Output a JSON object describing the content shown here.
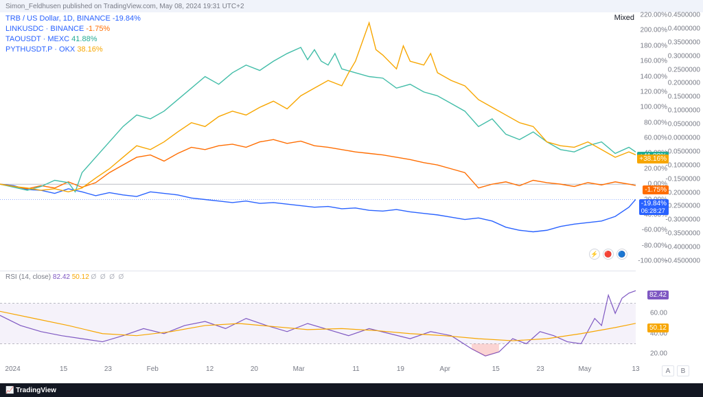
{
  "header": {
    "text": "Simon_Feldhusen published on TradingView.com, May 08, 2024 19:31 UTC+2"
  },
  "legend": {
    "rows": [
      {
        "sym": "TRB / US Dollar, 1D, BINANCE",
        "val": "-19.84%",
        "symColor": "#2962ff",
        "valColor": "#2962ff"
      },
      {
        "sym": "LINKUSDC · BINANCE",
        "val": "-1.75%",
        "symColor": "#2962ff",
        "valColor": "#ff6d00"
      },
      {
        "sym": "TAOUSDT · MEXC",
        "val": "41.88%",
        "symColor": "#2962ff",
        "valColor": "#22ab94"
      },
      {
        "sym": "PYTHUSDT.P · OKX",
        "val": "38.16%",
        "symColor": "#2962ff",
        "valColor": "#f7a600"
      }
    ]
  },
  "mode": "Mixed",
  "chart": {
    "ylim": [
      -100,
      220
    ],
    "y2lim": [
      -0.45,
      0.45
    ],
    "yticks": [
      -100,
      -80,
      -60,
      -40,
      -20,
      0,
      20,
      40,
      60,
      80,
      100,
      120,
      140,
      160,
      180,
      200,
      220
    ],
    "y2ticks": [
      -0.45,
      -0.4,
      -0.35,
      -0.3,
      -0.25,
      -0.2,
      -0.15,
      -0.1,
      -0.05,
      0,
      0.05,
      0.1,
      0.15,
      0.2,
      0.25,
      0.3,
      0.35,
      0.4,
      0.45
    ],
    "xticks": [
      {
        "p": 0.02,
        "l": "2024"
      },
      {
        "p": 0.1,
        "l": "15"
      },
      {
        "p": 0.17,
        "l": "23"
      },
      {
        "p": 0.24,
        "l": "Feb"
      },
      {
        "p": 0.33,
        "l": "12"
      },
      {
        "p": 0.4,
        "l": "20"
      },
      {
        "p": 0.47,
        "l": "Mar"
      },
      {
        "p": 0.56,
        "l": "11"
      },
      {
        "p": 0.63,
        "l": "19"
      },
      {
        "p": 0.7,
        "l": "Apr"
      },
      {
        "p": 0.78,
        "l": "15"
      },
      {
        "p": 0.85,
        "l": "23"
      },
      {
        "p": 0.92,
        "l": "May"
      },
      {
        "p": 1.0,
        "l": "13"
      }
    ],
    "zeroY": 0,
    "series": [
      {
        "name": "TRB",
        "color": "#2962ff",
        "badge": {
          "text": "-19.84%",
          "sub": "06:28:27",
          "bg": "#2962ff",
          "y": -19.84
        },
        "pts": [
          [
            0,
            0
          ],
          [
            2,
            -2
          ],
          [
            4,
            -7
          ],
          [
            6,
            -8
          ],
          [
            8,
            -12
          ],
          [
            10,
            -6
          ],
          [
            12,
            -10
          ],
          [
            14,
            -15
          ],
          [
            16,
            -11
          ],
          [
            18,
            -14
          ],
          [
            20,
            -16
          ],
          [
            22,
            -10
          ],
          [
            24,
            -12
          ],
          [
            26,
            -14
          ],
          [
            28,
            -18
          ],
          [
            30,
            -20
          ],
          [
            32,
            -22
          ],
          [
            34,
            -24
          ],
          [
            36,
            -22
          ],
          [
            38,
            -25
          ],
          [
            40,
            -24
          ],
          [
            42,
            -26
          ],
          [
            44,
            -28
          ],
          [
            46,
            -30
          ],
          [
            48,
            -29
          ],
          [
            50,
            -32
          ],
          [
            52,
            -31
          ],
          [
            54,
            -34
          ],
          [
            56,
            -35
          ],
          [
            58,
            -33
          ],
          [
            60,
            -36
          ],
          [
            62,
            -38
          ],
          [
            64,
            -40
          ],
          [
            66,
            -43
          ],
          [
            68,
            -46
          ],
          [
            70,
            -44
          ],
          [
            72,
            -48
          ],
          [
            74,
            -56
          ],
          [
            76,
            -60
          ],
          [
            78,
            -62
          ],
          [
            80,
            -60
          ],
          [
            82,
            -55
          ],
          [
            84,
            -52
          ],
          [
            86,
            -50
          ],
          [
            88,
            -48
          ],
          [
            90,
            -42
          ],
          [
            92,
            -30
          ],
          [
            93,
            -19.84
          ]
        ]
      },
      {
        "name": "LINK",
        "color": "#ff6d00",
        "badge": {
          "text": "-1.75%",
          "bg": "#ff6d00",
          "y": -1.75
        },
        "pts": [
          [
            0,
            0
          ],
          [
            2,
            -3
          ],
          [
            4,
            -6
          ],
          [
            6,
            -2
          ],
          [
            8,
            -5
          ],
          [
            10,
            3
          ],
          [
            12,
            -4
          ],
          [
            14,
            2
          ],
          [
            16,
            15
          ],
          [
            18,
            25
          ],
          [
            20,
            35
          ],
          [
            22,
            38
          ],
          [
            24,
            30
          ],
          [
            26,
            40
          ],
          [
            28,
            48
          ],
          [
            30,
            45
          ],
          [
            32,
            50
          ],
          [
            34,
            52
          ],
          [
            36,
            48
          ],
          [
            38,
            55
          ],
          [
            40,
            58
          ],
          [
            42,
            53
          ],
          [
            44,
            56
          ],
          [
            46,
            50
          ],
          [
            48,
            48
          ],
          [
            50,
            45
          ],
          [
            52,
            42
          ],
          [
            54,
            40
          ],
          [
            56,
            38
          ],
          [
            58,
            35
          ],
          [
            60,
            32
          ],
          [
            62,
            28
          ],
          [
            64,
            25
          ],
          [
            66,
            20
          ],
          [
            68,
            15
          ],
          [
            70,
            -5
          ],
          [
            72,
            0
          ],
          [
            74,
            3
          ],
          [
            76,
            -2
          ],
          [
            78,
            5
          ],
          [
            80,
            2
          ],
          [
            82,
            0
          ],
          [
            84,
            -3
          ],
          [
            86,
            2
          ],
          [
            88,
            -1
          ],
          [
            90,
            3
          ],
          [
            92,
            0
          ],
          [
            93,
            -1.75
          ]
        ]
      },
      {
        "name": "TAO",
        "color": "#42bda8",
        "badge": {
          "text": "+41.88%",
          "bg": "#22ab94",
          "y": 41.88
        },
        "pts": [
          [
            0,
            0
          ],
          [
            2,
            -4
          ],
          [
            4,
            -8
          ],
          [
            6,
            -3
          ],
          [
            8,
            5
          ],
          [
            10,
            2
          ],
          [
            11,
            -10
          ],
          [
            12,
            15
          ],
          [
            14,
            35
          ],
          [
            16,
            55
          ],
          [
            18,
            75
          ],
          [
            20,
            90
          ],
          [
            22,
            85
          ],
          [
            24,
            95
          ],
          [
            26,
            110
          ],
          [
            28,
            125
          ],
          [
            30,
            140
          ],
          [
            32,
            130
          ],
          [
            34,
            145
          ],
          [
            36,
            155
          ],
          [
            38,
            148
          ],
          [
            40,
            160
          ],
          [
            42,
            170
          ],
          [
            44,
            178
          ],
          [
            45,
            162
          ],
          [
            46,
            175
          ],
          [
            47,
            160
          ],
          [
            48,
            155
          ],
          [
            49,
            170
          ],
          [
            50,
            150
          ],
          [
            52,
            145
          ],
          [
            54,
            140
          ],
          [
            56,
            138
          ],
          [
            58,
            125
          ],
          [
            60,
            130
          ],
          [
            62,
            120
          ],
          [
            64,
            115
          ],
          [
            66,
            105
          ],
          [
            68,
            95
          ],
          [
            70,
            75
          ],
          [
            72,
            85
          ],
          [
            74,
            65
          ],
          [
            76,
            58
          ],
          [
            78,
            68
          ],
          [
            80,
            55
          ],
          [
            82,
            45
          ],
          [
            84,
            42
          ],
          [
            86,
            50
          ],
          [
            88,
            55
          ],
          [
            90,
            40
          ],
          [
            92,
            48
          ],
          [
            93,
            41.88
          ]
        ]
      },
      {
        "name": "PYTH",
        "color": "#f7a600",
        "badge": {
          "text": "+38.16%",
          "bg": "#f7a600",
          "y": 38.16
        },
        "pts": [
          [
            0,
            0
          ],
          [
            2,
            -3
          ],
          [
            4,
            -5
          ],
          [
            6,
            -8
          ],
          [
            8,
            -6
          ],
          [
            10,
            -10
          ],
          [
            12,
            -5
          ],
          [
            14,
            8
          ],
          [
            16,
            20
          ],
          [
            18,
            35
          ],
          [
            20,
            50
          ],
          [
            22,
            45
          ],
          [
            24,
            55
          ],
          [
            26,
            68
          ],
          [
            28,
            80
          ],
          [
            30,
            75
          ],
          [
            32,
            88
          ],
          [
            34,
            95
          ],
          [
            36,
            90
          ],
          [
            38,
            100
          ],
          [
            40,
            108
          ],
          [
            42,
            98
          ],
          [
            44,
            115
          ],
          [
            46,
            125
          ],
          [
            48,
            135
          ],
          [
            50,
            128
          ],
          [
            51,
            145
          ],
          [
            52,
            160
          ],
          [
            53,
            185
          ],
          [
            54,
            210
          ],
          [
            55,
            175
          ],
          [
            56,
            168
          ],
          [
            58,
            150
          ],
          [
            59,
            180
          ],
          [
            60,
            160
          ],
          [
            62,
            155
          ],
          [
            63,
            170
          ],
          [
            64,
            145
          ],
          [
            66,
            135
          ],
          [
            68,
            128
          ],
          [
            70,
            110
          ],
          [
            72,
            100
          ],
          [
            74,
            90
          ],
          [
            76,
            80
          ],
          [
            78,
            75
          ],
          [
            80,
            55
          ],
          [
            82,
            50
          ],
          [
            84,
            48
          ],
          [
            86,
            55
          ],
          [
            88,
            45
          ],
          [
            90,
            35
          ],
          [
            92,
            42
          ],
          [
            93,
            38.16
          ]
        ]
      }
    ]
  },
  "rsi": {
    "label": "RSI (14, close)",
    "v1": "82.42",
    "v1c": "#7e57c2",
    "v2": "50.12",
    "v2c": "#f7a600",
    "ylim": [
      10,
      90
    ],
    "bands": [
      30,
      70
    ],
    "yticks": [
      20,
      40,
      60
    ],
    "badges": [
      {
        "text": "82.42",
        "bg": "#7e57c2",
        "y": 82.42
      },
      {
        "text": "50.12",
        "bg": "#f7a600",
        "y": 50.12
      }
    ],
    "purple": [
      [
        0,
        58
      ],
      [
        3,
        48
      ],
      [
        6,
        42
      ],
      [
        9,
        38
      ],
      [
        12,
        35
      ],
      [
        15,
        32
      ],
      [
        18,
        38
      ],
      [
        21,
        45
      ],
      [
        24,
        40
      ],
      [
        27,
        48
      ],
      [
        30,
        52
      ],
      [
        33,
        45
      ],
      [
        36,
        55
      ],
      [
        39,
        48
      ],
      [
        42,
        42
      ],
      [
        45,
        50
      ],
      [
        48,
        44
      ],
      [
        51,
        38
      ],
      [
        54,
        45
      ],
      [
        57,
        40
      ],
      [
        60,
        35
      ],
      [
        63,
        42
      ],
      [
        66,
        38
      ],
      [
        69,
        25
      ],
      [
        71,
        18
      ],
      [
        73,
        22
      ],
      [
        75,
        35
      ],
      [
        77,
        30
      ],
      [
        79,
        42
      ],
      [
        81,
        38
      ],
      [
        83,
        32
      ],
      [
        85,
        30
      ],
      [
        87,
        55
      ],
      [
        88,
        48
      ],
      [
        89,
        78
      ],
      [
        90,
        60
      ],
      [
        91,
        75
      ],
      [
        92,
        80
      ],
      [
        93,
        82.42
      ]
    ],
    "yellow": [
      [
        0,
        62
      ],
      [
        5,
        55
      ],
      [
        10,
        48
      ],
      [
        15,
        40
      ],
      [
        20,
        38
      ],
      [
        25,
        42
      ],
      [
        30,
        48
      ],
      [
        35,
        50
      ],
      [
        40,
        47
      ],
      [
        45,
        44
      ],
      [
        50,
        45
      ],
      [
        55,
        43
      ],
      [
        60,
        40
      ],
      [
        65,
        38
      ],
      [
        70,
        35
      ],
      [
        75,
        33
      ],
      [
        80,
        35
      ],
      [
        85,
        40
      ],
      [
        90,
        46
      ],
      [
        93,
        50.12
      ]
    ]
  },
  "footer": "TradingView",
  "btnA": "A",
  "btnB": "B",
  "gear": "⚙"
}
